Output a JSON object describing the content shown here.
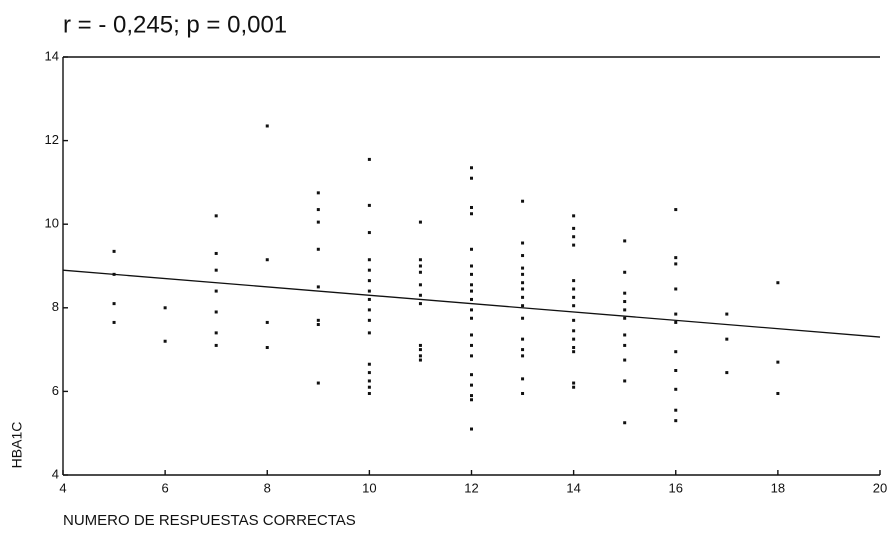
{
  "chart_data": {
    "type": "scatter",
    "title": "r = - 0,245; p = 0,001",
    "x_label": "NUMERO DE RESPUESTAS CORRECTAS",
    "y_label": "HBA1C",
    "xlim": [
      4,
      20
    ],
    "ylim": [
      4,
      14
    ],
    "xticks": [
      4,
      6,
      8,
      10,
      12,
      14,
      16,
      18,
      20
    ],
    "yticks": [
      4,
      6,
      8,
      10,
      12,
      14
    ],
    "color": "#111111",
    "x": [
      5,
      5,
      5,
      5,
      6,
      6,
      7,
      7,
      7,
      7,
      7,
      7,
      7,
      8,
      8,
      8,
      8,
      9,
      9,
      9,
      9,
      9,
      9,
      9,
      9,
      10,
      10,
      10,
      10,
      10,
      10,
      10,
      10,
      10,
      10,
      10,
      10,
      10,
      10,
      10,
      10,
      11,
      11,
      11,
      11,
      11,
      11,
      11,
      11,
      11,
      11,
      11,
      12,
      12,
      12,
      12,
      12,
      12,
      12,
      12,
      12,
      12,
      12,
      12,
      12,
      12,
      12,
      12,
      12,
      12,
      12,
      12,
      13,
      13,
      13,
      13,
      13,
      13,
      13,
      13,
      13,
      13,
      13,
      13,
      13,
      13,
      13,
      14,
      14,
      14,
      14,
      14,
      14,
      14,
      14,
      14,
      14,
      14,
      14,
      14,
      14,
      14,
      15,
      15,
      15,
      15,
      15,
      15,
      15,
      15,
      15,
      15,
      15,
      16,
      16,
      16,
      16,
      16,
      16,
      16,
      16,
      16,
      16,
      16,
      17,
      17,
      17,
      18,
      18,
      18
    ],
    "values": [
      9.35,
      8.8,
      8.1,
      7.65,
      8.0,
      7.2,
      10.2,
      9.3,
      8.9,
      8.4,
      7.9,
      7.4,
      7.1,
      12.35,
      9.15,
      7.65,
      7.05,
      10.75,
      10.35,
      10.05,
      9.4,
      8.5,
      7.7,
      7.6,
      6.2,
      11.55,
      10.45,
      9.8,
      9.15,
      8.9,
      8.65,
      8.4,
      8.2,
      7.95,
      7.7,
      7.4,
      6.65,
      6.45,
      6.25,
      6.1,
      5.95,
      10.05,
      9.15,
      9.0,
      8.85,
      8.55,
      8.3,
      8.1,
      7.1,
      7.0,
      6.85,
      6.75,
      11.35,
      11.1,
      10.4,
      10.25,
      9.4,
      9.0,
      8.8,
      8.55,
      8.4,
      8.2,
      7.95,
      7.75,
      7.35,
      7.1,
      6.85,
      6.4,
      6.15,
      5.9,
      5.8,
      5.1,
      10.55,
      9.55,
      9.25,
      8.95,
      8.8,
      8.6,
      8.45,
      8.25,
      8.05,
      7.75,
      7.25,
      7.0,
      6.85,
      6.3,
      5.95,
      10.2,
      9.9,
      9.7,
      9.5,
      8.65,
      8.45,
      8.25,
      8.05,
      7.7,
      7.45,
      7.25,
      7.05,
      6.95,
      6.2,
      6.1,
      9.6,
      8.85,
      8.35,
      8.15,
      7.95,
      7.75,
      7.35,
      7.1,
      6.75,
      6.25,
      5.25,
      10.35,
      9.2,
      9.05,
      8.45,
      7.85,
      7.65,
      6.95,
      6.5,
      6.05,
      5.55,
      5.3,
      7.85,
      7.25,
      6.45,
      8.6,
      6.7,
      5.95
    ],
    "fit": {
      "x": [
        4,
        20
      ],
      "values": [
        8.9,
        7.3
      ]
    }
  }
}
